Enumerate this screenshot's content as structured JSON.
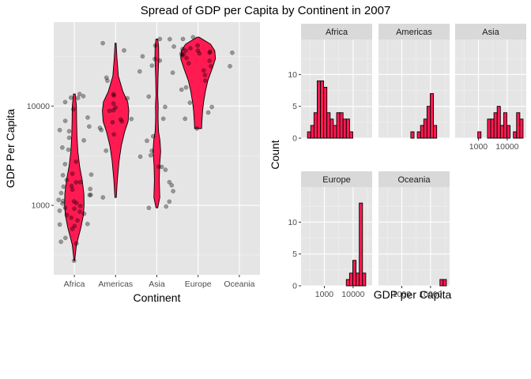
{
  "title": "Spread of GDP per Capita by Continent in 2007",
  "colors": {
    "fill": "#FF1A52",
    "panel": "#E5E5E5",
    "grid": "#FFFFFF",
    "strip": "#D9D9D9",
    "point": "#000000"
  },
  "chart_data": [
    {
      "type": "violin",
      "xlabel": "Continent",
      "ylabel": "GDP Per Capita",
      "y_scale": "log10",
      "ylim": [
        200,
        70000
      ],
      "y_ticks": [
        1000,
        10000
      ],
      "y_tick_labels": [
        "1000",
        "10000"
      ],
      "categories": [
        "Africa",
        "Americas",
        "Asia",
        "Europe",
        "Oceania"
      ],
      "violins": [
        {
          "category": "Africa",
          "range": [
            277,
            13206
          ],
          "density": [
            [
              277,
              0.02
            ],
            [
              400,
              0.12
            ],
            [
              600,
              0.38
            ],
            [
              800,
              0.52
            ],
            [
              1000,
              0.56
            ],
            [
              1300,
              0.55
            ],
            [
              1800,
              0.45
            ],
            [
              2500,
              0.3
            ],
            [
              3500,
              0.2
            ],
            [
              5000,
              0.15
            ],
            [
              7000,
              0.13
            ],
            [
              10000,
              0.12
            ],
            [
              13206,
              0.05
            ]
          ]
        },
        {
          "category": "Americas",
          "range": [
            1202,
            42952
          ],
          "density": [
            [
              1202,
              0.04
            ],
            [
              1800,
              0.1
            ],
            [
              2800,
              0.2
            ],
            [
              4000,
              0.33
            ],
            [
              5500,
              0.52
            ],
            [
              7000,
              0.72
            ],
            [
              9000,
              0.76
            ],
            [
              11000,
              0.7
            ],
            [
              14000,
              0.42
            ],
            [
              20000,
              0.16
            ],
            [
              30000,
              0.08
            ],
            [
              42952,
              0.03
            ]
          ]
        },
        {
          "category": "Asia",
          "range": [
            944,
            47307
          ],
          "density": [
            [
              944,
              0.05
            ],
            [
              1200,
              0.17
            ],
            [
              1800,
              0.14
            ],
            [
              2500,
              0.16
            ],
            [
              3500,
              0.22
            ],
            [
              4500,
              0.18
            ],
            [
              5500,
              0.1
            ],
            [
              6500,
              0.08
            ],
            [
              8000,
              0.07
            ],
            [
              10000,
              0.08
            ],
            [
              13000,
              0.05
            ],
            [
              20000,
              0.07
            ],
            [
              30000,
              0.11
            ],
            [
              40000,
              0.1
            ],
            [
              47307,
              0.05
            ]
          ]
        },
        {
          "category": "Europe",
          "range": [
            5937,
            49357
          ],
          "density": [
            [
              5937,
              0.2
            ],
            [
              7000,
              0.22
            ],
            [
              9000,
              0.26
            ],
            [
              11000,
              0.32
            ],
            [
              14000,
              0.42
            ],
            [
              18000,
              0.56
            ],
            [
              24000,
              0.82
            ],
            [
              30000,
              1.0
            ],
            [
              36000,
              0.96
            ],
            [
              42000,
              0.72
            ],
            [
              49357,
              0.06
            ]
          ]
        }
      ],
      "points": [
        {
          "category": "Africa",
          "values": [
            277,
            413,
            430,
            470,
            580,
            620,
            641,
            650,
            706,
            750,
            800,
            824,
            863,
            883,
            926,
            943,
            986,
            1042,
            1057,
            1095,
            1107,
            1136,
            1271,
            1275,
            1330,
            1441,
            1463,
            1544,
            1570,
            1704,
            1712,
            1803,
            2013,
            2042,
            2082,
            2602,
            2749,
            3632,
            3821,
            4513,
            4797,
            5581,
            5728,
            6224,
            7093,
            7670,
            9270,
            10957,
            12057,
            12155,
            12570,
            13206
          ]
        },
        {
          "category": "Americas",
          "values": [
            1202,
            3548,
            5186,
            5728,
            6025,
            6873,
            7006,
            7321,
            7409,
            8948,
            9065,
            9645,
            10611,
            11978,
            12779,
            13172,
            18009,
            19329,
            36319,
            42952
          ]
        },
        {
          "category": "Asia",
          "values": [
            944,
            974,
            1091,
            1391,
            1593,
            1713,
            2280,
            2442,
            2452,
            3095,
            3190,
            3540,
            4471,
            4959,
            7458,
            9810,
            12451,
            21655,
            22316,
            25523,
            28718,
            29796,
            31656,
            39725,
            40676,
            47143,
            47307
          ]
        },
        {
          "category": "Europe",
          "values": [
            5937,
            7446,
            8605,
            9787,
            10808,
            14619,
            15390,
            18009,
            20510,
            22833,
            25144,
            26973,
            28570,
            30470,
            32170,
            33203,
            33693,
            33860,
            34435,
            35278,
            36126,
            36181,
            37506,
            38150,
            40676,
            47307,
            49357
          ]
        },
        {
          "category": "Oceania",
          "values": [
            25185,
            34435
          ]
        }
      ]
    },
    {
      "type": "histogram",
      "facets": [
        "Africa",
        "Americas",
        "Asia",
        "Europe",
        "Oceania"
      ],
      "xlabel": "GDP per Capita",
      "ylabel": "Count",
      "x_scale": "log10",
      "x_ticks": [
        1000,
        10000
      ],
      "x_tick_labels": [
        "1000",
        "10000"
      ],
      "y_ticks": [
        0,
        5,
        10
      ],
      "y_tick_labels": [
        "0",
        "5",
        "10"
      ],
      "ylim": [
        0,
        15.5
      ],
      "bin_edges": [
        200.2,
        259.4,
        336.1,
        435.5,
        564.3,
        731.2,
        947.4,
        1227.5,
        1590.5,
        2060.8,
        2670.2,
        3459.8,
        4482.8,
        5808.4,
        7526.0,
        9751.4,
        12634.9,
        16371.0,
        21212.0,
        27484.5,
        35611.7
      ],
      "counts": {
        "Africa": [
          0,
          1,
          2,
          4,
          9,
          9,
          8,
          4,
          3,
          2,
          4,
          4,
          3,
          3,
          1,
          0,
          0,
          0,
          0,
          0
        ],
        "Americas": [
          0,
          0,
          0,
          0,
          0,
          0,
          0,
          0,
          0,
          1,
          0,
          1,
          2,
          3,
          5,
          7,
          2,
          0,
          0,
          0
        ],
        "Asia": [
          0,
          0,
          0,
          0,
          0,
          0,
          1,
          0,
          0,
          3,
          3,
          4,
          5,
          2,
          4,
          2,
          0,
          1,
          4,
          3
        ],
        "Europe": [
          0,
          0,
          0,
          0,
          0,
          0,
          0,
          0,
          0,
          0,
          0,
          0,
          0,
          1,
          2,
          4,
          2,
          13,
          2,
          0
        ],
        "Oceania": [
          0,
          0,
          0,
          0,
          0,
          0,
          0,
          0,
          0,
          0,
          0,
          0,
          0,
          0,
          0,
          0,
          0,
          0,
          1,
          1
        ]
      }
    }
  ]
}
